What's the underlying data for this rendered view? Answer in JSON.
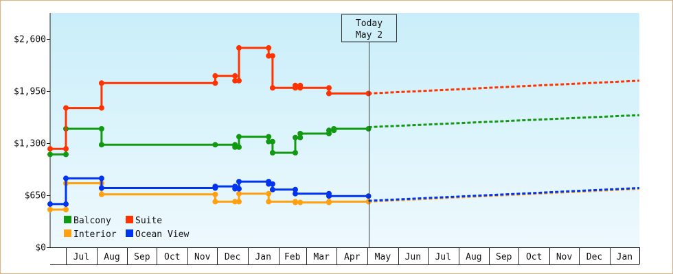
{
  "chart_data": {
    "type": "line",
    "title": "",
    "xlabel": "",
    "ylabel": "",
    "ylim": [
      0,
      2925
    ],
    "y_ticks": [
      {
        "value": 0,
        "label": "$0"
      },
      {
        "value": 650,
        "label": "$650"
      },
      {
        "value": 1300,
        "label": "$1,300"
      },
      {
        "value": 1950,
        "label": "$1,950"
      },
      {
        "value": 2600,
        "label": "$2,600"
      }
    ],
    "x_months": [
      "Jul",
      "Aug",
      "Sep",
      "Oct",
      "Nov",
      "Dec",
      "Jan",
      "Feb",
      "Mar",
      "Apr",
      "May",
      "Jun",
      "Jul",
      "Aug",
      "Sep",
      "Oct",
      "Nov",
      "Dec",
      "Jan"
    ],
    "x_unit": "days relative to today (May 2); negative = past",
    "xlim": [
      -322,
      274
    ],
    "today": {
      "x": 0,
      "label_line1": "Today",
      "label_line2": "May 2"
    },
    "background": {
      "top": "#c9eefa",
      "bottom": "#eef9fd"
    },
    "legend_position": "bottom-left",
    "series": [
      {
        "name": "Balcony",
        "color": "#119911",
        "history": [
          [
            -322,
            1160
          ],
          [
            -306,
            1160
          ],
          [
            -306,
            1480
          ],
          [
            -270,
            1480
          ],
          [
            -270,
            1280
          ],
          [
            -155,
            1280
          ],
          [
            -135,
            1280
          ],
          [
            -135,
            1250
          ],
          [
            -131,
            1250
          ],
          [
            -131,
            1380
          ],
          [
            -101,
            1380
          ],
          [
            -101,
            1320
          ],
          [
            -97,
            1320
          ],
          [
            -97,
            1180
          ],
          [
            -74,
            1180
          ],
          [
            -74,
            1370
          ],
          [
            -69,
            1370
          ],
          [
            -69,
            1420
          ],
          [
            -40,
            1420
          ],
          [
            -40,
            1460
          ],
          [
            -35,
            1460
          ],
          [
            -35,
            1480
          ],
          [
            0,
            1480
          ]
        ],
        "forecast": [
          [
            0,
            1500
          ],
          [
            274,
            1650
          ]
        ]
      },
      {
        "name": "Suite",
        "color": "#ff3300",
        "history": [
          [
            -322,
            1230
          ],
          [
            -306,
            1230
          ],
          [
            -306,
            1740
          ],
          [
            -270,
            1740
          ],
          [
            -270,
            2050
          ],
          [
            -155,
            2050
          ],
          [
            -155,
            2140
          ],
          [
            -135,
            2140
          ],
          [
            -135,
            2080
          ],
          [
            -131,
            2080
          ],
          [
            -131,
            2490
          ],
          [
            -101,
            2490
          ],
          [
            -101,
            2390
          ],
          [
            -97,
            2390
          ],
          [
            -97,
            1990
          ],
          [
            -74,
            1990
          ],
          [
            -74,
            2020
          ],
          [
            -69,
            2020
          ],
          [
            -69,
            1990
          ],
          [
            -40,
            1990
          ],
          [
            -40,
            1920
          ],
          [
            0,
            1920
          ]
        ],
        "forecast": [
          [
            0,
            1920
          ],
          [
            274,
            2080
          ]
        ]
      },
      {
        "name": "Interior",
        "color": "#ffa010",
        "history": [
          [
            -322,
            470
          ],
          [
            -306,
            470
          ],
          [
            -306,
            800
          ],
          [
            -270,
            800
          ],
          [
            -270,
            660
          ],
          [
            -155,
            660
          ],
          [
            -155,
            570
          ],
          [
            -135,
            570
          ],
          [
            -131,
            570
          ],
          [
            -131,
            670
          ],
          [
            -101,
            670
          ],
          [
            -101,
            570
          ],
          [
            -74,
            570
          ],
          [
            -74,
            560
          ],
          [
            -69,
            560
          ],
          [
            -40,
            560
          ],
          [
            -40,
            570
          ],
          [
            0,
            570
          ]
        ],
        "forecast": [
          [
            0,
            570
          ],
          [
            274,
            730
          ]
        ]
      },
      {
        "name": "Ocean View",
        "color": "#0033ee",
        "history": [
          [
            -322,
            540
          ],
          [
            -306,
            540
          ],
          [
            -306,
            860
          ],
          [
            -270,
            860
          ],
          [
            -270,
            740
          ],
          [
            -155,
            740
          ],
          [
            -155,
            760
          ],
          [
            -135,
            760
          ],
          [
            -135,
            730
          ],
          [
            -131,
            730
          ],
          [
            -131,
            820
          ],
          [
            -101,
            820
          ],
          [
            -101,
            790
          ],
          [
            -97,
            790
          ],
          [
            -97,
            720
          ],
          [
            -74,
            720
          ],
          [
            -74,
            670
          ],
          [
            -40,
            670
          ],
          [
            -40,
            640
          ],
          [
            0,
            640
          ]
        ],
        "forecast": [
          [
            0,
            580
          ],
          [
            274,
            740
          ]
        ]
      }
    ],
    "legend": [
      {
        "name": "Balcony",
        "color": "#119911"
      },
      {
        "name": "Suite",
        "color": "#ff3300"
      },
      {
        "name": "Interior",
        "color": "#ffa010"
      },
      {
        "name": "Ocean View",
        "color": "#0033ee"
      }
    ]
  }
}
